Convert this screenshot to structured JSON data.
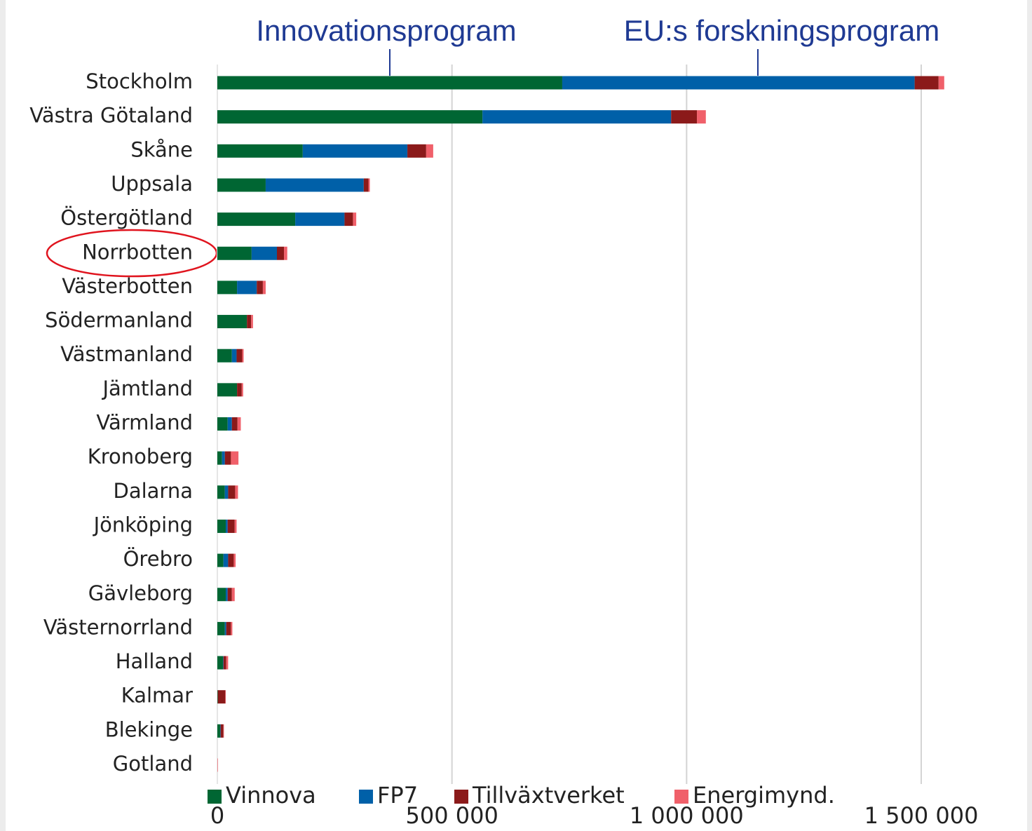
{
  "chart_data": {
    "type": "bar",
    "orientation": "horizontal",
    "stacked": true,
    "annotations": [
      "Innovationsprogram",
      "EU:s forskningsprogram"
    ],
    "categories": [
      "Stockholm",
      "Västra Götaland",
      "Skåne",
      "Uppsala",
      "Östergötland",
      "Norrbotten",
      "Västerbotten",
      "Södermanland",
      "Västmanland",
      "Jämtland",
      "Värmland",
      "Kronoberg",
      "Dalarna",
      "Jönköping",
      "Örebro",
      "Gävleborg",
      "Västernorrland",
      "Halland",
      "Kalmar",
      "Blekinge",
      "Gotland"
    ],
    "series": [
      {
        "name": "Vinnova",
        "color": "#006633",
        "values": [
          735000,
          565000,
          182000,
          103000,
          166000,
          73000,
          42000,
          63000,
          31000,
          42000,
          22000,
          10000,
          16000,
          18000,
          13000,
          18000,
          16000,
          12000,
          1000,
          6000,
          0
        ]
      },
      {
        "name": "FP7",
        "color": "#0060a8",
        "values": [
          751000,
          402000,
          223000,
          209000,
          105000,
          54000,
          42000,
          0,
          10000,
          0,
          9000,
          6000,
          7000,
          4000,
          10000,
          4000,
          3000,
          1000,
          0,
          1000,
          0
        ]
      },
      {
        "name": "Tillväxtverket",
        "color": "#8b1a1a",
        "values": [
          51000,
          55000,
          40000,
          10000,
          18000,
          15000,
          13000,
          9000,
          12000,
          10000,
          12000,
          13000,
          15000,
          15000,
          12000,
          9000,
          10000,
          6000,
          16000,
          6000,
          0
        ]
      },
      {
        "name": "Energimynd.",
        "color": "#f0606a",
        "values": [
          12000,
          19000,
          15000,
          3000,
          7000,
          7000,
          6000,
          4000,
          3000,
          3000,
          7000,
          16000,
          6000,
          4000,
          4000,
          6000,
          3000,
          4000,
          1000,
          1000,
          1000
        ]
      }
    ],
    "xlim": [
      0,
      1500000
    ],
    "xticks": [
      0,
      {
        "value": 500000,
        "label": "500 000"
      },
      {
        "value": 1000000,
        "label": "1 000 000"
      },
      {
        "value": 1500000,
        "label": "1 500 000"
      }
    ],
    "grid": true,
    "legend": "bottom"
  }
}
